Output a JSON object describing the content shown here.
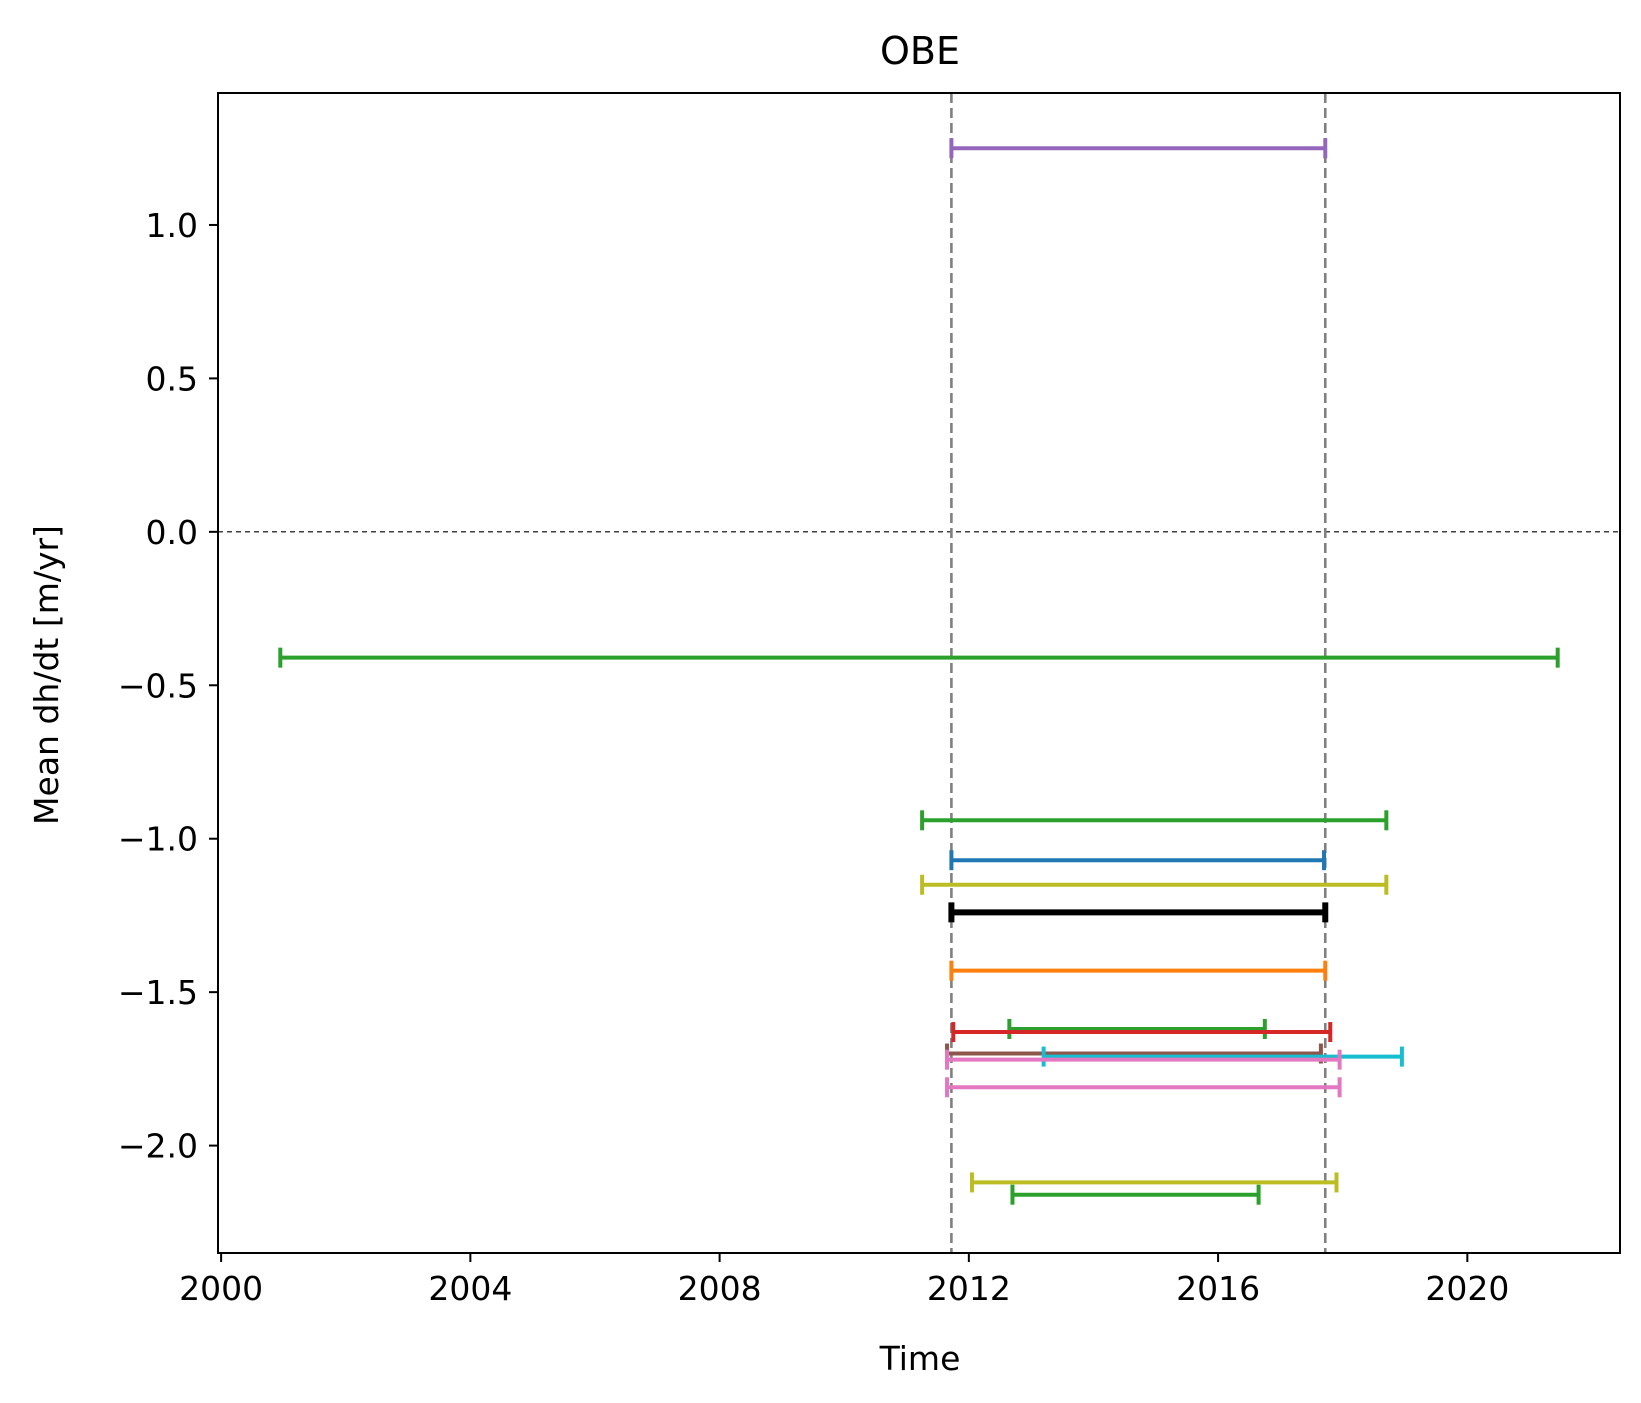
{
  "chart_data": {
    "type": "line",
    "title": "OBE",
    "xlabel": "Time",
    "ylabel": "Mean dh/dt [m/yr]",
    "xlim": [
      1999.95,
      2022.45
    ],
    "ylim": [
      -2.35,
      1.43
    ],
    "xticks": [
      2000,
      2004,
      2008,
      2012,
      2016,
      2020
    ],
    "xtick_labels": [
      "2000",
      "2004",
      "2008",
      "2012",
      "2016",
      "2020"
    ],
    "yticks": [
      1.0,
      0.5,
      0.0,
      -0.5,
      -1.0,
      -1.5,
      -2.0
    ],
    "ytick_labels": [
      "1.0",
      "0.5",
      "0.0",
      "−0.5",
      "−1.0",
      "−1.5",
      "−2.0"
    ],
    "grid": false,
    "legend": "none",
    "reference_lines": {
      "horizontal_zero": 0.0,
      "vertical_dashed": [
        2011.72,
        2017.72
      ]
    },
    "series": [
      {
        "x": [
          2011.72,
          2017.72
        ],
        "y": 1.25,
        "color": "#9467bd"
      },
      {
        "x": [
          2000.95,
          2021.45
        ],
        "y": -0.41,
        "color": "#2ca02c"
      },
      {
        "x": [
          2011.25,
          2018.7
        ],
        "y": -0.94,
        "color": "#2ca02c"
      },
      {
        "x": [
          2011.72,
          2017.7
        ],
        "y": -1.07,
        "color": "#1f77b4"
      },
      {
        "x": [
          2011.25,
          2018.7
        ],
        "y": -1.15,
        "color": "#bcbd22"
      },
      {
        "x": [
          2011.72,
          2017.72
        ],
        "y": -1.24,
        "color": "#000000",
        "bold": true
      },
      {
        "x": [
          2011.72,
          2017.72
        ],
        "y": -1.43,
        "color": "#ff7f0e"
      },
      {
        "x": [
          2012.65,
          2016.75
        ],
        "y": -1.62,
        "color": "#2ca02c"
      },
      {
        "x": [
          2011.75,
          2017.8
        ],
        "y": -1.63,
        "color": "#d62728"
      },
      {
        "x": [
          2011.65,
          2017.65
        ],
        "y": -1.7,
        "color": "#8c564b"
      },
      {
        "x": [
          2013.2,
          2018.95
        ],
        "y": -1.71,
        "color": "#17becf"
      },
      {
        "x": [
          2011.65,
          2017.95
        ],
        "y": -1.72,
        "color": "#e377c2"
      },
      {
        "x": [
          2011.65,
          2017.95
        ],
        "y": -1.81,
        "color": "#e377c2"
      },
      {
        "x": [
          2012.05,
          2017.9
        ],
        "y": -2.12,
        "color": "#bcbd22"
      },
      {
        "x": [
          2012.7,
          2016.65
        ],
        "y": -2.16,
        "color": "#2ca02c"
      }
    ]
  }
}
